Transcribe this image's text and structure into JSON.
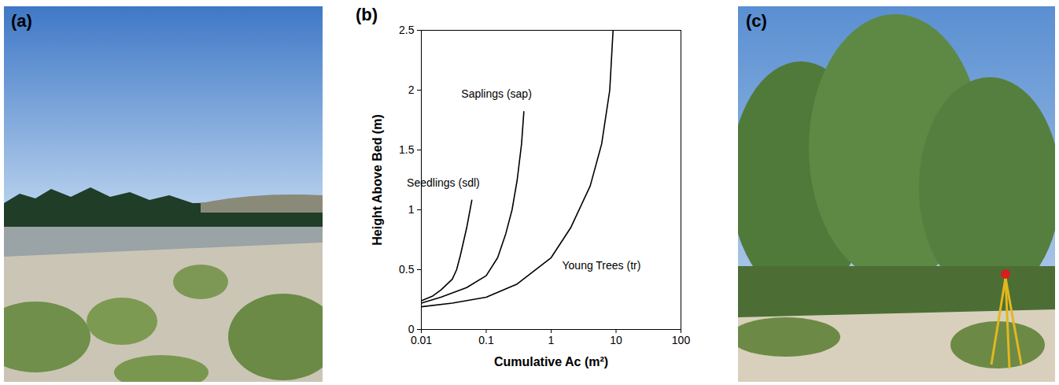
{
  "photos": [
    {
      "label": "(a)"
    },
    {
      "label": "(c)"
    }
  ],
  "chart_data": {
    "type": "line",
    "panel_label": "(b)",
    "x_label": "Cumulative Ac (m²)",
    "y_label": "Height Above Bed (m)",
    "log": "x",
    "grid": false,
    "xlim": [
      0.01,
      100
    ],
    "xticks": [
      0.01,
      0.1,
      1,
      10,
      100
    ],
    "ylim": [
      0,
      2.5
    ],
    "yticks": [
      0,
      0.5,
      1,
      1.5,
      2,
      2.5
    ],
    "series": [
      {
        "name": "Seedlings (sdl)",
        "color": "#000000",
        "line_style": "solid",
        "x": [
          0.01,
          0.015,
          0.02,
          0.03,
          0.035,
          0.04,
          0.05,
          0.06
        ],
        "values": [
          0.24,
          0.28,
          0.33,
          0.42,
          0.5,
          0.62,
          0.85,
          1.08
        ]
      },
      {
        "name": "Saplings (sap)",
        "color": "#000000",
        "line_style": "solid",
        "x": [
          0.01,
          0.02,
          0.05,
          0.1,
          0.15,
          0.2,
          0.25,
          0.3,
          0.35,
          0.38
        ],
        "values": [
          0.22,
          0.27,
          0.35,
          0.45,
          0.6,
          0.8,
          1.0,
          1.25,
          1.55,
          1.82
        ]
      },
      {
        "name": "Young Trees (tr)",
        "color": "#000000",
        "line_style": "solid",
        "x": [
          0.01,
          0.03,
          0.1,
          0.3,
          1,
          2,
          4,
          6,
          8,
          9
        ],
        "values": [
          0.19,
          0.22,
          0.27,
          0.38,
          0.6,
          0.85,
          1.2,
          1.55,
          2.0,
          2.5
        ]
      }
    ]
  }
}
